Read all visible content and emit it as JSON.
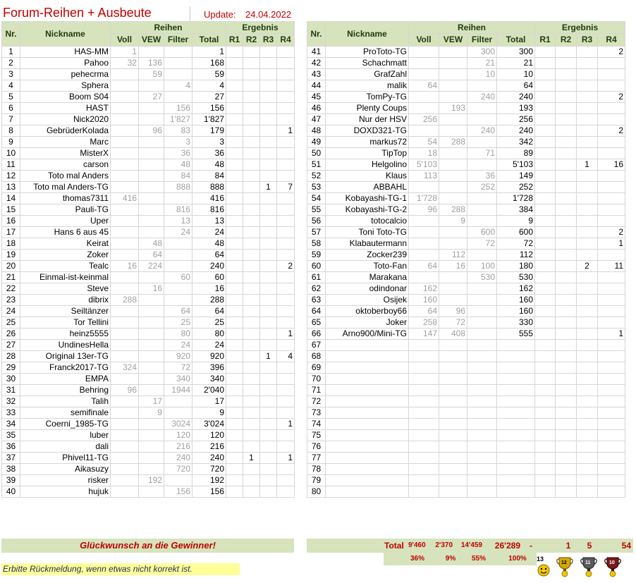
{
  "header": {
    "title": "Forum-Reihen + Ausbeute",
    "update_label": "Update:",
    "update_date": "24.04.2022"
  },
  "columns": {
    "group_reihen": "Reihen",
    "group_ergebnis": "Ergebnis",
    "nr": "Nr.",
    "nickname": "Nickname",
    "voll": "Voll",
    "vew": "VEW",
    "filter": "Filter",
    "total": "Total",
    "r1": "R1",
    "r2": "R2",
    "r3": "R3",
    "r4": "R4"
  },
  "left_rows": [
    {
      "nr": "1",
      "nick": "HAS-MM",
      "voll": "1",
      "vew": "",
      "filter": "",
      "total": "1",
      "r1": "",
      "r2": "",
      "r3": "",
      "r4": ""
    },
    {
      "nr": "2",
      "nick": "Pahoo",
      "voll": "32",
      "vew": "136",
      "filter": "",
      "total": "168",
      "r1": "",
      "r2": "",
      "r3": "",
      "r4": ""
    },
    {
      "nr": "3",
      "nick": "pehecrma",
      "voll": "",
      "vew": "59",
      "filter": "",
      "total": "59",
      "r1": "",
      "r2": "",
      "r3": "",
      "r4": ""
    },
    {
      "nr": "4",
      "nick": "Sphera",
      "voll": "",
      "vew": "",
      "filter": "4",
      "total": "4",
      "r1": "",
      "r2": "",
      "r3": "",
      "r4": ""
    },
    {
      "nr": "5",
      "nick": "Boom S04",
      "voll": "",
      "vew": "27",
      "filter": "",
      "total": "27",
      "r1": "",
      "r2": "",
      "r3": "",
      "r4": ""
    },
    {
      "nr": "6",
      "nick": "HAST",
      "voll": "",
      "vew": "",
      "filter": "156",
      "total": "156",
      "r1": "",
      "r2": "",
      "r3": "",
      "r4": ""
    },
    {
      "nr": "7",
      "nick": "Nick2020",
      "voll": "",
      "vew": "",
      "filter": "1'827",
      "total": "1'827",
      "r1": "",
      "r2": "",
      "r3": "",
      "r4": ""
    },
    {
      "nr": "8",
      "nick": "GebrüderKolada",
      "voll": "",
      "vew": "96",
      "filter": "83",
      "total": "179",
      "r1": "",
      "r2": "",
      "r3": "",
      "r4": "1"
    },
    {
      "nr": "9",
      "nick": "Marc",
      "voll": "",
      "vew": "",
      "filter": "3",
      "total": "3",
      "r1": "",
      "r2": "",
      "r3": "",
      "r4": ""
    },
    {
      "nr": "10",
      "nick": "MisterX",
      "voll": "",
      "vew": "",
      "filter": "36",
      "total": "36",
      "r1": "",
      "r2": "",
      "r3": "",
      "r4": ""
    },
    {
      "nr": "11",
      "nick": "carson",
      "voll": "",
      "vew": "",
      "filter": "48",
      "total": "48",
      "r1": "",
      "r2": "",
      "r3": "",
      "r4": ""
    },
    {
      "nr": "12",
      "nick": "Toto mal Anders",
      "voll": "",
      "vew": "",
      "filter": "84",
      "total": "84",
      "r1": "",
      "r2": "",
      "r3": "",
      "r4": ""
    },
    {
      "nr": "13",
      "nick": "Toto mal Anders-TG",
      "voll": "",
      "vew": "",
      "filter": "888",
      "total": "888",
      "r1": "",
      "r2": "",
      "r3": "1",
      "r4": "7"
    },
    {
      "nr": "14",
      "nick": "thomas7311",
      "voll": "416",
      "vew": "",
      "filter": "",
      "total": "416",
      "r1": "",
      "r2": "",
      "r3": "",
      "r4": ""
    },
    {
      "nr": "15",
      "nick": "Pauli-TG",
      "voll": "",
      "vew": "",
      "filter": "816",
      "total": "816",
      "r1": "",
      "r2": "",
      "r3": "",
      "r4": ""
    },
    {
      "nr": "16",
      "nick": "Uper",
      "voll": "",
      "vew": "",
      "filter": "13",
      "total": "13",
      "r1": "",
      "r2": "",
      "r3": "",
      "r4": ""
    },
    {
      "nr": "17",
      "nick": "Hans 6 aus 45",
      "voll": "",
      "vew": "",
      "filter": "24",
      "total": "24",
      "r1": "",
      "r2": "",
      "r3": "",
      "r4": ""
    },
    {
      "nr": "18",
      "nick": "Keirat",
      "voll": "",
      "vew": "48",
      "filter": "",
      "total": "48",
      "r1": "",
      "r2": "",
      "r3": "",
      "r4": ""
    },
    {
      "nr": "19",
      "nick": "Zoker",
      "voll": "",
      "vew": "64",
      "filter": "",
      "total": "64",
      "r1": "",
      "r2": "",
      "r3": "",
      "r4": ""
    },
    {
      "nr": "20",
      "nick": "Tealc",
      "voll": "16",
      "vew": "224",
      "filter": "",
      "total": "240",
      "r1": "",
      "r2": "",
      "r3": "",
      "r4": "2"
    },
    {
      "nr": "21",
      "nick": "Einmal-ist-keinmal",
      "voll": "",
      "vew": "",
      "filter": "60",
      "total": "60",
      "r1": "",
      "r2": "",
      "r3": "",
      "r4": ""
    },
    {
      "nr": "22",
      "nick": "Steve",
      "voll": "",
      "vew": "16",
      "filter": "",
      "total": "16",
      "r1": "",
      "r2": "",
      "r3": "",
      "r4": ""
    },
    {
      "nr": "23",
      "nick": "dibrix",
      "voll": "288",
      "vew": "",
      "filter": "",
      "total": "288",
      "r1": "",
      "r2": "",
      "r3": "",
      "r4": ""
    },
    {
      "nr": "24",
      "nick": "Seiltänzer",
      "voll": "",
      "vew": "",
      "filter": "64",
      "total": "64",
      "r1": "",
      "r2": "",
      "r3": "",
      "r4": ""
    },
    {
      "nr": "25",
      "nick": "Tor Tellini",
      "voll": "",
      "vew": "",
      "filter": "25",
      "total": "25",
      "r1": "",
      "r2": "",
      "r3": "",
      "r4": ""
    },
    {
      "nr": "26",
      "nick": "heinz5555",
      "voll": "",
      "vew": "",
      "filter": "80",
      "total": "80",
      "r1": "",
      "r2": "",
      "r3": "",
      "r4": "1"
    },
    {
      "nr": "27",
      "nick": "UndinesHella",
      "voll": "",
      "vew": "",
      "filter": "24",
      "total": "24",
      "r1": "",
      "r2": "",
      "r3": "",
      "r4": ""
    },
    {
      "nr": "28",
      "nick": "Original 13er-TG",
      "voll": "",
      "vew": "",
      "filter": "920",
      "total": "920",
      "r1": "",
      "r2": "",
      "r3": "1",
      "r4": "4"
    },
    {
      "nr": "29",
      "nick": "Franck2017-TG",
      "voll": "324",
      "vew": "",
      "filter": "72",
      "total": "396",
      "r1": "",
      "r2": "",
      "r3": "",
      "r4": ""
    },
    {
      "nr": "30",
      "nick": "EMPA",
      "voll": "",
      "vew": "",
      "filter": "340",
      "total": "340",
      "r1": "",
      "r2": "",
      "r3": "",
      "r4": ""
    },
    {
      "nr": "31",
      "nick": "Behring",
      "voll": "96",
      "vew": "",
      "filter": "1944",
      "total": "2'040",
      "r1": "",
      "r2": "",
      "r3": "",
      "r4": ""
    },
    {
      "nr": "32",
      "nick": "Talih",
      "voll": "",
      "vew": "17",
      "filter": "",
      "total": "17",
      "r1": "",
      "r2": "",
      "r3": "",
      "r4": ""
    },
    {
      "nr": "33",
      "nick": "semifinale",
      "voll": "",
      "vew": "9",
      "filter": "",
      "total": "9",
      "r1": "",
      "r2": "",
      "r3": "",
      "r4": ""
    },
    {
      "nr": "34",
      "nick": "Coerni_1985-TG",
      "voll": "",
      "vew": "",
      "filter": "3024",
      "total": "3'024",
      "r1": "",
      "r2": "",
      "r3": "",
      "r4": "1"
    },
    {
      "nr": "35",
      "nick": "luber",
      "voll": "",
      "vew": "",
      "filter": "120",
      "total": "120",
      "r1": "",
      "r2": "",
      "r3": "",
      "r4": ""
    },
    {
      "nr": "36",
      "nick": "dali",
      "voll": "",
      "vew": "",
      "filter": "216",
      "total": "216",
      "r1": "",
      "r2": "",
      "r3": "",
      "r4": ""
    },
    {
      "nr": "37",
      "nick": "Phivel11-TG",
      "voll": "",
      "vew": "",
      "filter": "240",
      "total": "240",
      "r1": "",
      "r2": "1",
      "r3": "",
      "r4": "1"
    },
    {
      "nr": "38",
      "nick": "Aikasuzy",
      "voll": "",
      "vew": "",
      "filter": "720",
      "total": "720",
      "r1": "",
      "r2": "",
      "r3": "",
      "r4": ""
    },
    {
      "nr": "39",
      "nick": "risker",
      "voll": "",
      "vew": "192",
      "filter": "",
      "total": "192",
      "r1": "",
      "r2": "",
      "r3": "",
      "r4": ""
    },
    {
      "nr": "40",
      "nick": "hujuk",
      "voll": "",
      "vew": "",
      "filter": "156",
      "total": "156",
      "r1": "",
      "r2": "",
      "r3": "",
      "r4": ""
    }
  ],
  "right_rows": [
    {
      "nr": "41",
      "nick": "ProToto-TG",
      "voll": "",
      "vew": "",
      "filter": "300",
      "total": "300",
      "r1": "",
      "r2": "",
      "r3": "",
      "r4": "2"
    },
    {
      "nr": "42",
      "nick": "Schachmatt",
      "voll": "",
      "vew": "",
      "filter": "21",
      "total": "21",
      "r1": "",
      "r2": "",
      "r3": "",
      "r4": ""
    },
    {
      "nr": "43",
      "nick": "GrafZahl",
      "voll": "",
      "vew": "",
      "filter": "10",
      "total": "10",
      "r1": "",
      "r2": "",
      "r3": "",
      "r4": ""
    },
    {
      "nr": "44",
      "nick": "malik",
      "voll": "64",
      "vew": "",
      "filter": "",
      "total": "64",
      "r1": "",
      "r2": "",
      "r3": "",
      "r4": ""
    },
    {
      "nr": "45",
      "nick": "TomPy-TG",
      "voll": "",
      "vew": "",
      "filter": "240",
      "total": "240",
      "r1": "",
      "r2": "",
      "r3": "",
      "r4": "2"
    },
    {
      "nr": "46",
      "nick": "Plenty Coups",
      "voll": "",
      "vew": "193",
      "filter": "",
      "total": "193",
      "r1": "",
      "r2": "",
      "r3": "",
      "r4": ""
    },
    {
      "nr": "47",
      "nick": "Nur der HSV",
      "voll": "256",
      "vew": "",
      "filter": "",
      "total": "256",
      "r1": "",
      "r2": "",
      "r3": "",
      "r4": ""
    },
    {
      "nr": "48",
      "nick": "DOXD321-TG",
      "voll": "",
      "vew": "",
      "filter": "240",
      "total": "240",
      "r1": "",
      "r2": "",
      "r3": "",
      "r4": "2"
    },
    {
      "nr": "49",
      "nick": "markus72",
      "voll": "54",
      "vew": "288",
      "filter": "",
      "total": "342",
      "r1": "",
      "r2": "",
      "r3": "",
      "r4": ""
    },
    {
      "nr": "50",
      "nick": "TipTop",
      "voll": "18",
      "vew": "",
      "filter": "71",
      "total": "89",
      "r1": "",
      "r2": "",
      "r3": "",
      "r4": ""
    },
    {
      "nr": "51",
      "nick": "Helgolino",
      "voll": "5'103",
      "vew": "",
      "filter": "",
      "total": "5'103",
      "r1": "",
      "r2": "",
      "r3": "1",
      "r4": "16"
    },
    {
      "nr": "52",
      "nick": "Klaus",
      "voll": "113",
      "vew": "",
      "filter": "36",
      "total": "149",
      "r1": "",
      "r2": "",
      "r3": "",
      "r4": ""
    },
    {
      "nr": "53",
      "nick": "ABBAHL",
      "voll": "",
      "vew": "",
      "filter": "252",
      "total": "252",
      "r1": "",
      "r2": "",
      "r3": "",
      "r4": ""
    },
    {
      "nr": "54",
      "nick": "Kobayashi-TG-1",
      "voll": "1'728",
      "vew": "",
      "filter": "",
      "total": "1'728",
      "r1": "",
      "r2": "",
      "r3": "",
      "r4": ""
    },
    {
      "nr": "55",
      "nick": "Kobayashi-TG-2",
      "voll": "96",
      "vew": "288",
      "filter": "",
      "total": "384",
      "r1": "",
      "r2": "",
      "r3": "",
      "r4": ""
    },
    {
      "nr": "56",
      "nick": "totocalcio",
      "voll": "",
      "vew": "9",
      "filter": "",
      "total": "9",
      "r1": "",
      "r2": "",
      "r3": "",
      "r4": ""
    },
    {
      "nr": "57",
      "nick": "Toni Toto-TG",
      "voll": "",
      "vew": "",
      "filter": "600",
      "total": "600",
      "r1": "",
      "r2": "",
      "r3": "",
      "r4": "2"
    },
    {
      "nr": "58",
      "nick": "Klabautermann",
      "voll": "",
      "vew": "",
      "filter": "72",
      "total": "72",
      "r1": "",
      "r2": "",
      "r3": "",
      "r4": "1"
    },
    {
      "nr": "59",
      "nick": "Zocker239",
      "voll": "",
      "vew": "112",
      "filter": "",
      "total": "112",
      "r1": "",
      "r2": "",
      "r3": "",
      "r4": ""
    },
    {
      "nr": "60",
      "nick": "Toto-Fan",
      "voll": "64",
      "vew": "16",
      "filter": "100",
      "total": "180",
      "r1": "",
      "r2": "",
      "r3": "2",
      "r4": "11"
    },
    {
      "nr": "61",
      "nick": "Marakana",
      "voll": "",
      "vew": "",
      "filter": "530",
      "total": "530",
      "r1": "",
      "r2": "",
      "r3": "",
      "r4": ""
    },
    {
      "nr": "62",
      "nick": "odindonar",
      "voll": "162",
      "vew": "",
      "filter": "",
      "total": "162",
      "r1": "",
      "r2": "",
      "r3": "",
      "r4": ""
    },
    {
      "nr": "63",
      "nick": "Osijek",
      "voll": "160",
      "vew": "",
      "filter": "",
      "total": "160",
      "r1": "",
      "r2": "",
      "r3": "",
      "r4": ""
    },
    {
      "nr": "64",
      "nick": "oktoberboy66",
      "voll": "64",
      "vew": "96",
      "filter": "",
      "total": "160",
      "r1": "",
      "r2": "",
      "r3": "",
      "r4": ""
    },
    {
      "nr": "65",
      "nick": "Joker",
      "voll": "258",
      "vew": "72",
      "filter": "",
      "total": "330",
      "r1": "",
      "r2": "",
      "r3": "",
      "r4": ""
    },
    {
      "nr": "66",
      "nick": "Arno900/Mini-TG",
      "voll": "147",
      "vew": "408",
      "filter": "",
      "total": "555",
      "r1": "",
      "r2": "",
      "r3": "",
      "r4": "1"
    },
    {
      "nr": "67",
      "nick": "",
      "voll": "",
      "vew": "",
      "filter": "",
      "total": "",
      "r1": "",
      "r2": "",
      "r3": "",
      "r4": ""
    },
    {
      "nr": "68",
      "nick": "",
      "voll": "",
      "vew": "",
      "filter": "",
      "total": "",
      "r1": "",
      "r2": "",
      "r3": "",
      "r4": ""
    },
    {
      "nr": "69",
      "nick": "",
      "voll": "",
      "vew": "",
      "filter": "",
      "total": "",
      "r1": "",
      "r2": "",
      "r3": "",
      "r4": ""
    },
    {
      "nr": "70",
      "nick": "",
      "voll": "",
      "vew": "",
      "filter": "",
      "total": "",
      "r1": "",
      "r2": "",
      "r3": "",
      "r4": ""
    },
    {
      "nr": "71",
      "nick": "",
      "voll": "",
      "vew": "",
      "filter": "",
      "total": "",
      "r1": "",
      "r2": "",
      "r3": "",
      "r4": ""
    },
    {
      "nr": "72",
      "nick": "",
      "voll": "",
      "vew": "",
      "filter": "",
      "total": "",
      "r1": "",
      "r2": "",
      "r3": "",
      "r4": ""
    },
    {
      "nr": "73",
      "nick": "",
      "voll": "",
      "vew": "",
      "filter": "",
      "total": "",
      "r1": "",
      "r2": "",
      "r3": "",
      "r4": ""
    },
    {
      "nr": "74",
      "nick": "",
      "voll": "",
      "vew": "",
      "filter": "",
      "total": "",
      "r1": "",
      "r2": "",
      "r3": "",
      "r4": ""
    },
    {
      "nr": "75",
      "nick": "",
      "voll": "",
      "vew": "",
      "filter": "",
      "total": "",
      "r1": "",
      "r2": "",
      "r3": "",
      "r4": ""
    },
    {
      "nr": "76",
      "nick": "",
      "voll": "",
      "vew": "",
      "filter": "",
      "total": "",
      "r1": "",
      "r2": "",
      "r3": "",
      "r4": ""
    },
    {
      "nr": "77",
      "nick": "",
      "voll": "",
      "vew": "",
      "filter": "",
      "total": "",
      "r1": "",
      "r2": "",
      "r3": "",
      "r4": ""
    },
    {
      "nr": "78",
      "nick": "",
      "voll": "",
      "vew": "",
      "filter": "",
      "total": "",
      "r1": "",
      "r2": "",
      "r3": "",
      "r4": ""
    },
    {
      "nr": "79",
      "nick": "",
      "voll": "",
      "vew": "",
      "filter": "",
      "total": "",
      "r1": "",
      "r2": "",
      "r3": "",
      "r4": ""
    },
    {
      "nr": "80",
      "nick": "",
      "voll": "",
      "vew": "",
      "filter": "",
      "total": "",
      "r1": "",
      "r2": "",
      "r3": "",
      "r4": ""
    }
  ],
  "footer": {
    "congrats": "Glückwunsch an die Gewinner!",
    "total_label": "Total",
    "total_voll": "9'460",
    "total_vew": "2'370",
    "total_filter": "14'459",
    "total_total": "26'289",
    "total_r1": "-",
    "total_r2": "1",
    "total_r3": "5",
    "total_r4": "54",
    "pct_voll": "36%",
    "pct_vew": "9%",
    "pct_filter": "55%",
    "pct_total": "100%",
    "note": "Erbitte Rückmeldung, wenn etwas nicht korrekt ist.",
    "icons": [
      "13er-smiley-icon",
      "12er-trophy-icon",
      "11er-trophy-icon",
      "10er-trophy-icon"
    ],
    "icon_labels": [
      "13",
      "12",
      "11",
      "10"
    ]
  },
  "colors": {
    "header_green": "#d6e3bc",
    "title_red": "#c00000",
    "note_yellow": "#ffff99"
  }
}
